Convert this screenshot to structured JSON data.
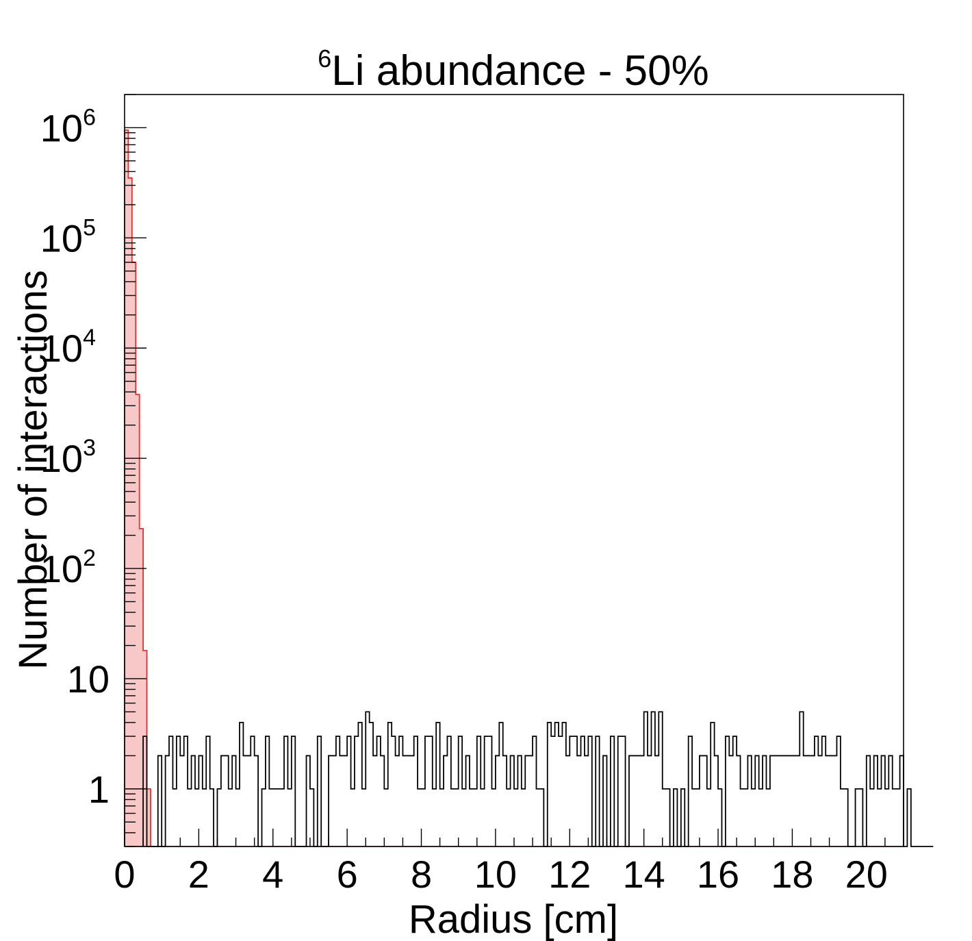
{
  "chart_data": {
    "type": "histogram",
    "title": {
      "superscript": "6",
      "text": "Li abundance - 50%"
    },
    "xlabel": "Radius [cm]",
    "ylabel": "Number of interactions",
    "x_scale": "linear",
    "y_scale": "log",
    "xlim": [
      0,
      21
    ],
    "ylim": [
      0.3,
      2000000
    ],
    "bin_width": 0.1,
    "x_ticks": [
      "0",
      "2",
      "4",
      "6",
      "8",
      "10",
      "12",
      "14",
      "16",
      "18",
      "20"
    ],
    "y_ticks": [
      {
        "value": 1,
        "base": "1",
        "exp": ""
      },
      {
        "value": 10,
        "base": "10",
        "exp": ""
      },
      {
        "value": 100,
        "base": "10",
        "exp": "2"
      },
      {
        "value": 1000,
        "base": "10",
        "exp": "3"
      },
      {
        "value": 10000,
        "base": "10",
        "exp": "4"
      },
      {
        "value": 100000,
        "base": "10",
        "exp": "5"
      },
      {
        "value": 1000000,
        "base": "10",
        "exp": "6"
      }
    ],
    "grid": false,
    "series": [
      {
        "color": "#e8312e",
        "fill": "#f8c8c8",
        "x_start": 0,
        "values": [
          950000,
          350000,
          60000,
          3800,
          230,
          18,
          1,
          0,
          0,
          0
        ]
      },
      {
        "color": "#000000",
        "x_start": 0.5,
        "values": [
          3,
          0,
          0,
          0,
          2,
          0,
          2,
          3,
          1,
          3,
          2,
          3,
          1,
          2,
          1,
          2,
          1,
          3,
          1,
          0,
          1,
          2,
          2,
          1,
          2,
          1,
          4,
          2,
          2,
          3,
          2,
          0,
          1,
          3,
          1,
          1,
          1,
          1,
          3,
          1,
          3,
          0,
          0,
          0,
          2,
          1,
          0,
          3,
          0,
          0,
          2,
          2,
          3,
          2,
          2,
          3,
          1,
          3,
          4,
          1,
          5,
          4,
          2,
          3,
          2,
          1,
          4,
          3,
          2,
          3,
          2,
          2,
          2,
          3,
          1,
          1,
          3,
          3,
          1,
          4,
          1,
          2,
          3,
          1,
          1,
          3,
          1,
          2,
          1,
          1,
          3,
          1,
          3,
          3,
          1,
          2,
          4,
          2,
          1,
          2,
          1,
          2,
          1,
          2,
          2,
          3,
          1,
          1,
          0,
          4,
          3,
          4,
          3,
          4,
          2,
          3,
          3,
          2,
          3,
          2,
          3,
          0,
          3,
          0,
          2,
          0,
          3,
          0,
          3,
          3,
          0,
          2,
          2,
          2,
          2,
          5,
          2,
          5,
          2,
          5,
          1,
          1,
          0,
          1,
          0,
          1,
          0,
          3,
          1,
          1,
          2,
          2,
          1,
          4,
          2,
          1,
          0,
          3,
          2,
          3,
          2,
          1,
          1,
          2,
          1,
          2,
          1,
          2,
          1,
          2,
          2,
          2,
          2,
          2,
          2,
          2,
          2,
          5,
          2,
          2,
          2,
          3,
          2,
          3,
          2,
          2,
          2,
          3,
          1,
          1,
          0,
          0,
          1,
          1,
          0,
          2,
          1,
          2,
          1,
          2,
          1,
          2,
          1,
          1,
          2,
          0,
          1,
          0,
          0,
          0,
          0,
          0,
          0
        ]
      }
    ]
  }
}
